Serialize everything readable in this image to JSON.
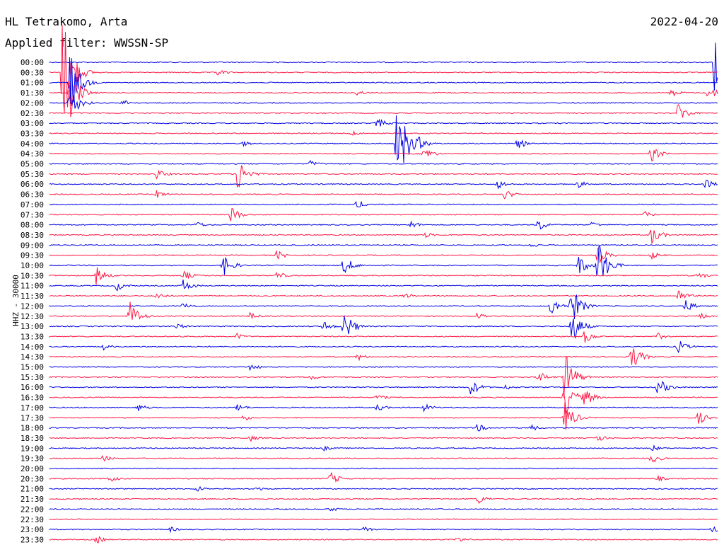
{
  "header": {
    "station": "HL Tetrakomo, Arta",
    "filter": "Applied filter: WWSSN-SP",
    "date": "2022-04-20"
  },
  "axis": {
    "ylabel": "HHZ - 30000"
  },
  "colors": {
    "even_row": "#0000e6",
    "odd_row": "#ff1744",
    "background": "#ffffff"
  },
  "chart_data": {
    "type": "line",
    "title": "HL Tetrakomo, Arta",
    "subtitle": "Applied filter: WWSSN-SP",
    "date": "2022-04-20",
    "ylabel": "HHZ - 30000",
    "row_interval_minutes": 30,
    "rows": [
      {
        "time": "00:00",
        "events": [
          {
            "t": 0.995,
            "amp": 60
          }
        ]
      },
      {
        "time": "00:30",
        "events": [
          {
            "t": 0.02,
            "amp": 100
          },
          {
            "t": 0.25,
            "amp": 6
          }
        ]
      },
      {
        "time": "01:00",
        "events": [
          {
            "t": 0.03,
            "amp": 50
          }
        ]
      },
      {
        "time": "01:30",
        "events": [
          {
            "t": 0.03,
            "amp": 40
          },
          {
            "t": 0.46,
            "amp": 4
          },
          {
            "t": 0.93,
            "amp": 6
          },
          {
            "t": 0.985,
            "amp": 10
          }
        ]
      },
      {
        "time": "02:00",
        "events": [
          {
            "t": 0.03,
            "amp": 25
          },
          {
            "t": 0.11,
            "amp": 5
          }
        ]
      },
      {
        "time": "02:30",
        "events": [
          {
            "t": 0.94,
            "amp": 16
          }
        ]
      },
      {
        "time": "03:00",
        "events": [
          {
            "t": 0.49,
            "amp": 8
          }
        ]
      },
      {
        "time": "03:30",
        "events": [
          {
            "t": 0.45,
            "amp": 5
          }
        ]
      },
      {
        "time": "04:00",
        "events": [
          {
            "t": 0.52,
            "amp": 70
          },
          {
            "t": 0.55,
            "amp": 12
          },
          {
            "t": 0.29,
            "amp": 4
          },
          {
            "t": 0.7,
            "amp": 8
          }
        ]
      },
      {
        "time": "04:30",
        "events": [
          {
            "t": 0.56,
            "amp": 10
          },
          {
            "t": 0.9,
            "amp": 12
          }
        ]
      },
      {
        "time": "05:00",
        "events": [
          {
            "t": 0.39,
            "amp": 5
          }
        ]
      },
      {
        "time": "05:30",
        "events": [
          {
            "t": 0.16,
            "amp": 8
          },
          {
            "t": 0.28,
            "amp": 28
          }
        ]
      },
      {
        "time": "06:00",
        "events": [
          {
            "t": 0.67,
            "amp": 7
          },
          {
            "t": 0.79,
            "amp": 6
          },
          {
            "t": 0.98,
            "amp": 8
          }
        ]
      },
      {
        "time": "06:30",
        "events": [
          {
            "t": 0.16,
            "amp": 6
          },
          {
            "t": 0.68,
            "amp": 8
          }
        ]
      },
      {
        "time": "07:00",
        "events": [
          {
            "t": 0.46,
            "amp": 7
          }
        ]
      },
      {
        "time": "07:30",
        "events": [
          {
            "t": 0.27,
            "amp": 14
          },
          {
            "t": 0.89,
            "amp": 5
          }
        ]
      },
      {
        "time": "08:00",
        "events": [
          {
            "t": 0.22,
            "amp": 5
          },
          {
            "t": 0.54,
            "amp": 6
          },
          {
            "t": 0.73,
            "amp": 10
          },
          {
            "t": 0.81,
            "amp": 5
          }
        ]
      },
      {
        "time": "08:30",
        "events": [
          {
            "t": 0.56,
            "amp": 5
          },
          {
            "t": 0.9,
            "amp": 14
          }
        ]
      },
      {
        "time": "09:00",
        "events": [
          {
            "t": 0.72,
            "amp": 4
          }
        ]
      },
      {
        "time": "09:30",
        "events": [
          {
            "t": 0.34,
            "amp": 7
          },
          {
            "t": 0.82,
            "amp": 14
          },
          {
            "t": 0.9,
            "amp": 6
          }
        ]
      },
      {
        "time": "10:00",
        "events": [
          {
            "t": 0.26,
            "amp": 16
          },
          {
            "t": 0.44,
            "amp": 14
          },
          {
            "t": 0.79,
            "amp": 16
          },
          {
            "t": 0.82,
            "amp": 40
          }
        ]
      },
      {
        "time": "10:30",
        "events": [
          {
            "t": 0.07,
            "amp": 14
          },
          {
            "t": 0.2,
            "amp": 8
          },
          {
            "t": 0.34,
            "amp": 6
          },
          {
            "t": 0.97,
            "amp": 6
          }
        ]
      },
      {
        "time": "11:00",
        "events": [
          {
            "t": 0.1,
            "amp": 8
          },
          {
            "t": 0.2,
            "amp": 10
          }
        ]
      },
      {
        "time": "11:30",
        "events": [
          {
            "t": 0.16,
            "amp": 6
          },
          {
            "t": 0.53,
            "amp": 5
          },
          {
            "t": 0.94,
            "amp": 10
          }
        ]
      },
      {
        "time": "12:00",
        "events": [
          {
            "t": 0.2,
            "amp": 6
          },
          {
            "t": 0.75,
            "amp": 14
          },
          {
            "t": 0.78,
            "amp": 30
          },
          {
            "t": 0.95,
            "amp": 10
          }
        ]
      },
      {
        "time": "12:30",
        "events": [
          {
            "t": 0.12,
            "amp": 22
          },
          {
            "t": 0.3,
            "amp": 6
          },
          {
            "t": 0.64,
            "amp": 6
          },
          {
            "t": 0.97,
            "amp": 6
          }
        ]
      },
      {
        "time": "13:00",
        "events": [
          {
            "t": 0.19,
            "amp": 5
          },
          {
            "t": 0.41,
            "amp": 8
          },
          {
            "t": 0.44,
            "amp": 24
          },
          {
            "t": 0.78,
            "amp": 28
          }
        ]
      },
      {
        "time": "13:30",
        "events": [
          {
            "t": 0.28,
            "amp": 5
          },
          {
            "t": 0.8,
            "amp": 10
          },
          {
            "t": 0.91,
            "amp": 5
          }
        ]
      },
      {
        "time": "14:00",
        "events": [
          {
            "t": 0.08,
            "amp": 5
          },
          {
            "t": 0.94,
            "amp": 10
          }
        ]
      },
      {
        "time": "14:30",
        "events": [
          {
            "t": 0.46,
            "amp": 6
          },
          {
            "t": 0.87,
            "amp": 20
          }
        ]
      },
      {
        "time": "15:00",
        "events": [
          {
            "t": 0.3,
            "amp": 6
          }
        ]
      },
      {
        "time": "15:30",
        "events": [
          {
            "t": 0.39,
            "amp": 5
          },
          {
            "t": 0.73,
            "amp": 10
          },
          {
            "t": 0.77,
            "amp": 40
          }
        ]
      },
      {
        "time": "16:00",
        "events": [
          {
            "t": 0.63,
            "amp": 12
          },
          {
            "t": 0.68,
            "amp": 5
          },
          {
            "t": 0.91,
            "amp": 14
          }
        ]
      },
      {
        "time": "16:30",
        "events": [
          {
            "t": 0.49,
            "amp": 5
          },
          {
            "t": 0.77,
            "amp": 28
          },
          {
            "t": 0.8,
            "amp": 14
          }
        ]
      },
      {
        "time": "17:00",
        "events": [
          {
            "t": 0.13,
            "amp": 7
          },
          {
            "t": 0.28,
            "amp": 6
          },
          {
            "t": 0.49,
            "amp": 6
          },
          {
            "t": 0.56,
            "amp": 6
          }
        ]
      },
      {
        "time": "17:30",
        "events": [
          {
            "t": 0.29,
            "amp": 5
          },
          {
            "t": 0.77,
            "amp": 25
          },
          {
            "t": 0.97,
            "amp": 10
          }
        ]
      },
      {
        "time": "18:00",
        "events": [
          {
            "t": 0.64,
            "amp": 6
          },
          {
            "t": 0.72,
            "amp": 5
          }
        ]
      },
      {
        "time": "18:30",
        "events": [
          {
            "t": 0.3,
            "amp": 5
          },
          {
            "t": 0.82,
            "amp": 6
          }
        ]
      },
      {
        "time": "19:00",
        "events": [
          {
            "t": 0.41,
            "amp": 4
          },
          {
            "t": 0.9,
            "amp": 5
          }
        ]
      },
      {
        "time": "19:30",
        "events": [
          {
            "t": 0.08,
            "amp": 5
          },
          {
            "t": 0.9,
            "amp": 8
          }
        ]
      },
      {
        "time": "20:00",
        "events": []
      },
      {
        "time": "20:30",
        "events": [
          {
            "t": 0.09,
            "amp": 5
          },
          {
            "t": 0.42,
            "amp": 10
          },
          {
            "t": 0.91,
            "amp": 4
          }
        ]
      },
      {
        "time": "21:00",
        "events": [
          {
            "t": 0.22,
            "amp": 5
          },
          {
            "t": 0.31,
            "amp": 4
          }
        ]
      },
      {
        "time": "21:30",
        "events": [
          {
            "t": 0.64,
            "amp": 8
          }
        ]
      },
      {
        "time": "22:00",
        "events": [
          {
            "t": 0.42,
            "amp": 4
          }
        ]
      },
      {
        "time": "22:30",
        "events": []
      },
      {
        "time": "23:00",
        "events": [
          {
            "t": 0.18,
            "amp": 4
          },
          {
            "t": 0.47,
            "amp": 4
          },
          {
            "t": 0.99,
            "amp": 6
          }
        ]
      },
      {
        "time": "23:30",
        "events": [
          {
            "t": 0.07,
            "amp": 6
          },
          {
            "t": 0.61,
            "amp": 5
          }
        ]
      }
    ]
  }
}
